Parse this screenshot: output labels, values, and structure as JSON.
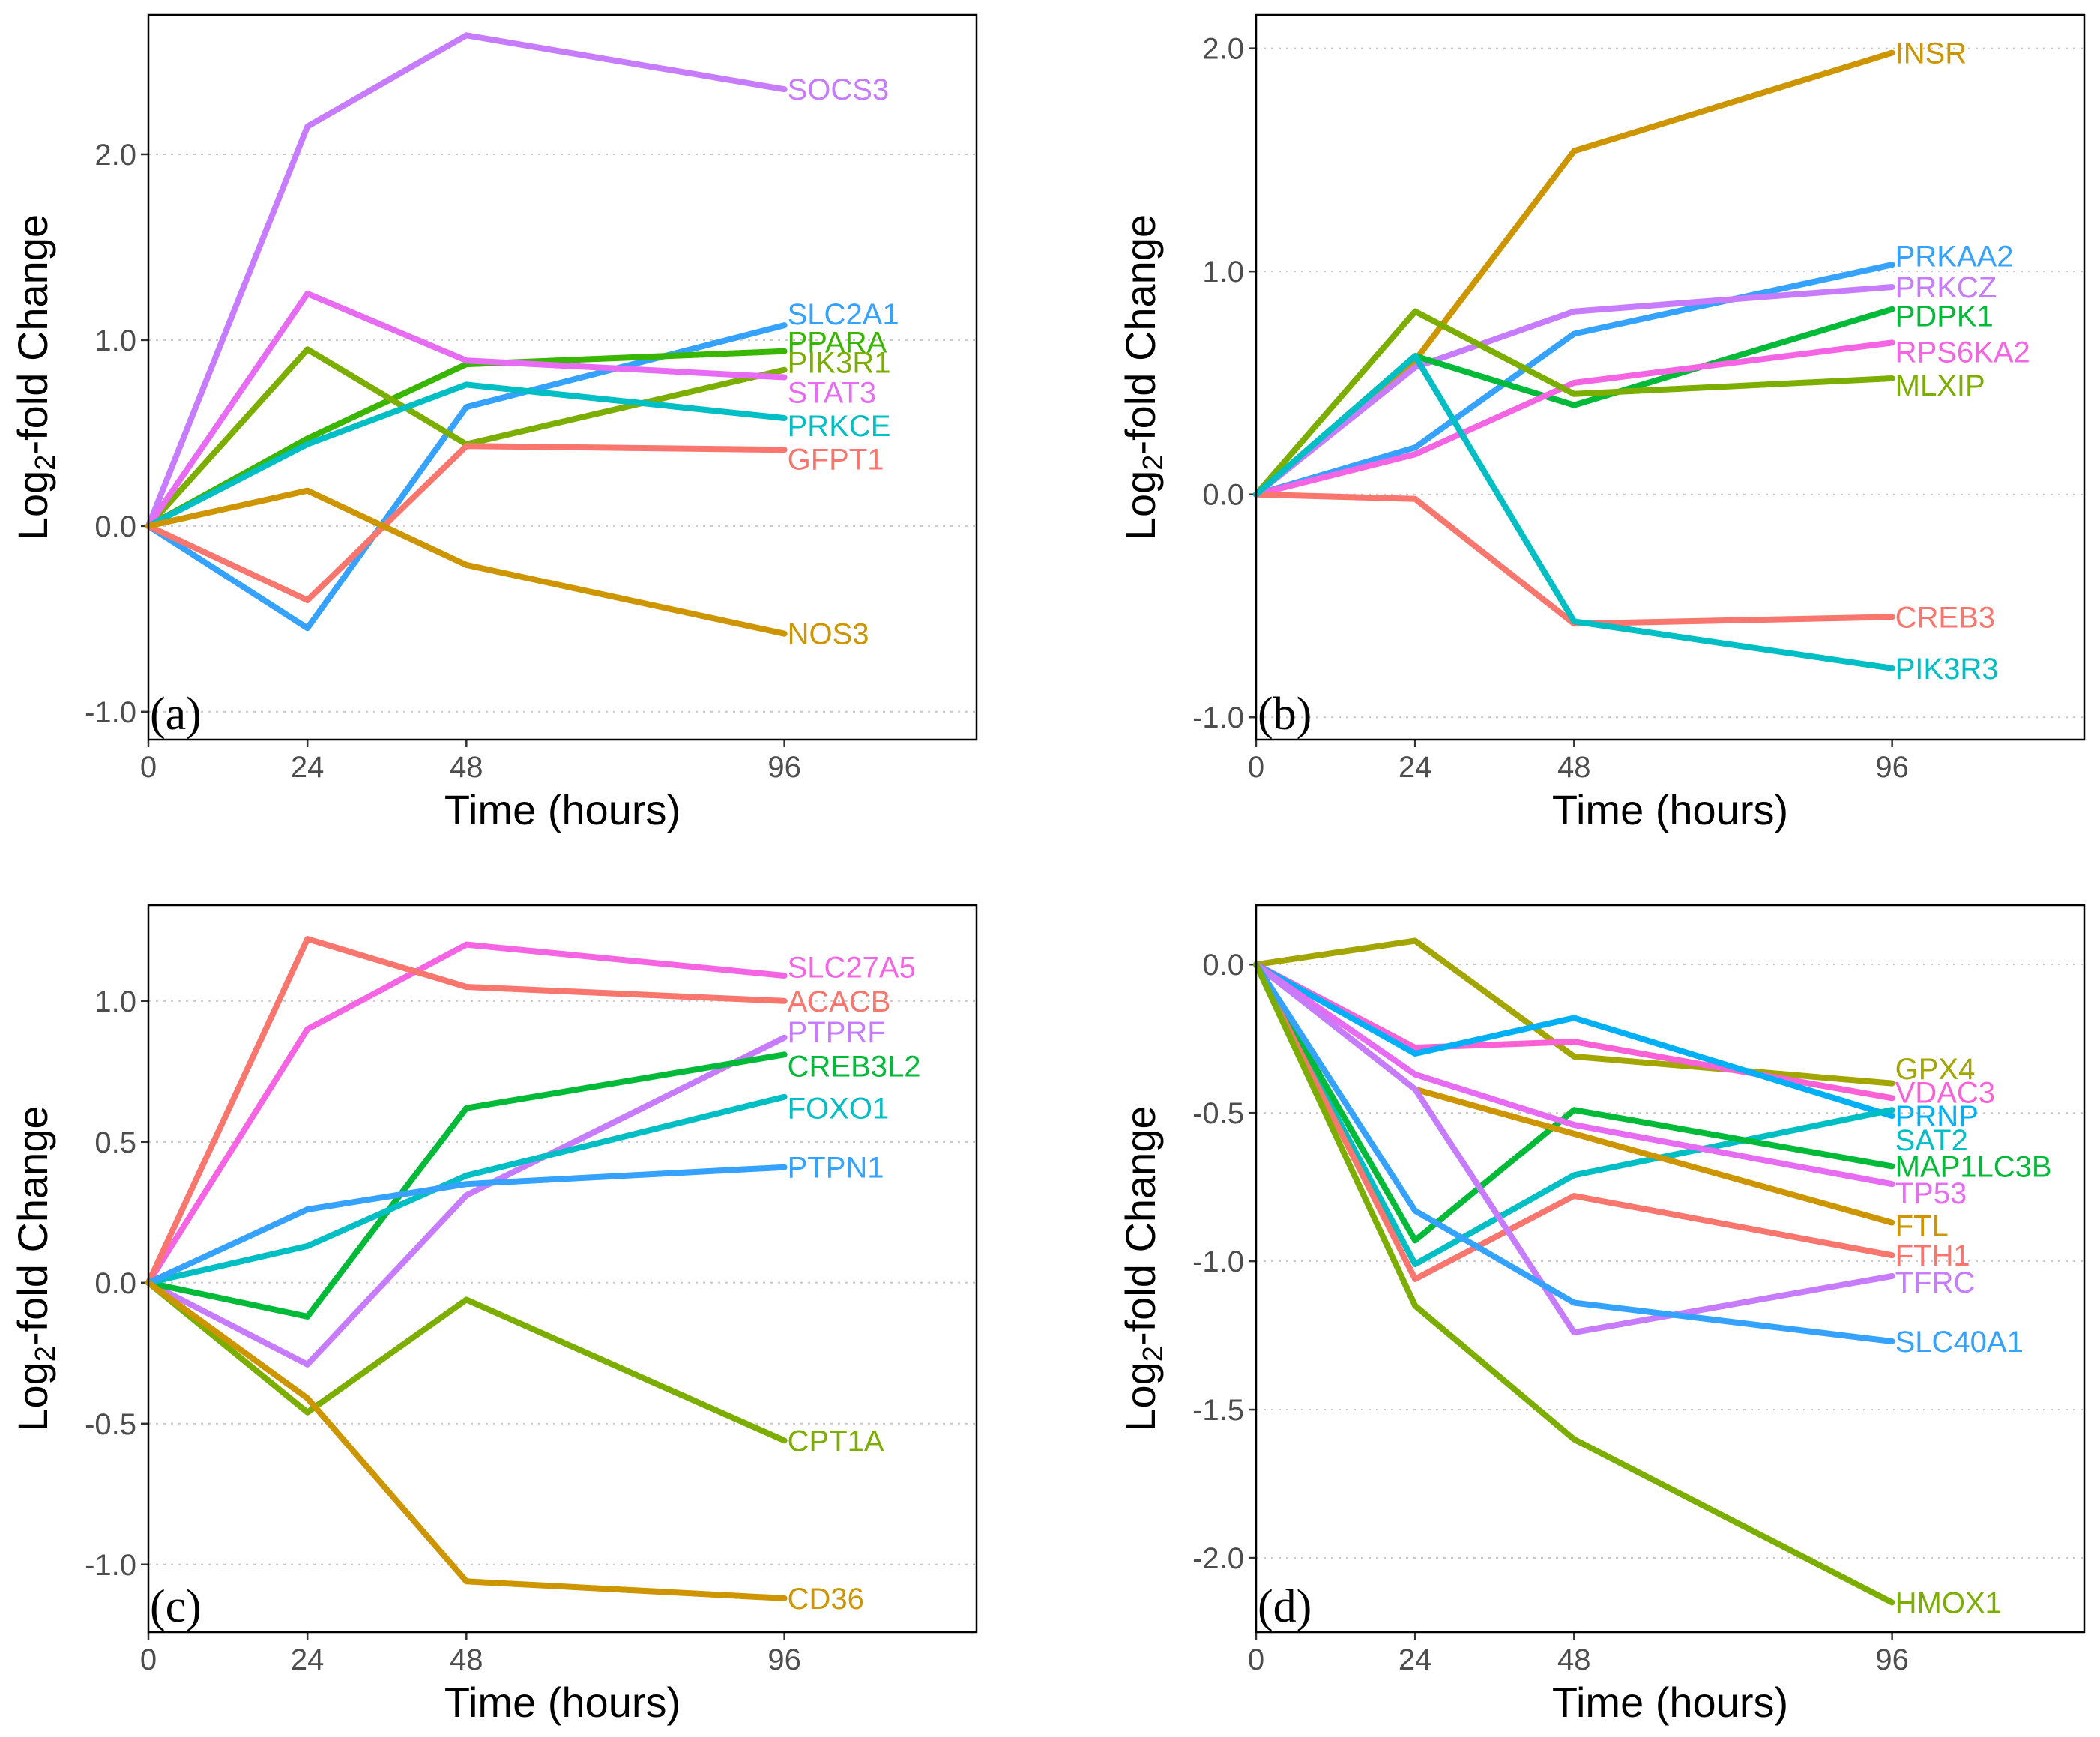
{
  "figure": {
    "axis_titles": {
      "x": "Time (hours)",
      "y_main": "Log",
      "y_sub": "2",
      "y_rest": "-fold Change"
    }
  },
  "chart_data": [
    {
      "type": "line",
      "panel_label": "(a)",
      "xlabel": "Time (hours)",
      "ylabel": "Log2-fold Change",
      "x": [
        0,
        24,
        48,
        96
      ],
      "x_ticks": [
        "0",
        "24",
        "48",
        "96"
      ],
      "xlim": [
        0,
        125
      ],
      "ylim": [
        -1.15,
        2.75
      ],
      "y_ticks": [
        {
          "v": -1.0,
          "label": "-1.0"
        },
        {
          "v": 0.0,
          "label": "0.0"
        },
        {
          "v": 1.0,
          "label": "1.0"
        },
        {
          "v": 2.0,
          "label": "2.0"
        }
      ],
      "grid": "horizontal dotted",
      "series": [
        {
          "name": "SOCS3",
          "color": "#c77cff",
          "values": [
            0,
            2.15,
            2.64,
            2.35
          ],
          "label_value": 2.35
        },
        {
          "name": "SLC2A1",
          "color": "#35a2ff",
          "values": [
            0,
            -0.55,
            0.64,
            1.08
          ],
          "label_value": 1.14
        },
        {
          "name": "PPARA",
          "color": "#39b600",
          "values": [
            0,
            0.47,
            0.87,
            0.94
          ],
          "label_value": 0.99
        },
        {
          "name": "PIK3R1",
          "color": "#7cae00",
          "values": [
            0,
            0.95,
            0.44,
            0.84
          ],
          "label_value": 0.88
        },
        {
          "name": "STAT3",
          "color": "#e76bf3",
          "values": [
            0,
            1.25,
            0.89,
            0.8
          ],
          "label_value": 0.72
        },
        {
          "name": "PRKCE",
          "color": "#00bfc4",
          "values": [
            0,
            0.44,
            0.76,
            0.58
          ],
          "label_value": 0.54
        },
        {
          "name": "GFPT1",
          "color": "#f8766d",
          "values": [
            0,
            -0.4,
            0.43,
            0.41
          ],
          "label_value": 0.36
        },
        {
          "name": "NOS3",
          "color": "#cd9600",
          "values": [
            0,
            0.19,
            -0.21,
            -0.58
          ],
          "label_value": -0.58
        }
      ]
    },
    {
      "type": "line",
      "panel_label": "(b)",
      "xlabel": "Time (hours)",
      "ylabel": "Log2-fold Change",
      "x": [
        0,
        24,
        48,
        96
      ],
      "x_ticks": [
        "0",
        "24",
        "48",
        "96"
      ],
      "xlim": [
        0,
        125
      ],
      "ylim": [
        -1.1,
        2.15
      ],
      "y_ticks": [
        {
          "v": -1.0,
          "label": "-1.0"
        },
        {
          "v": 0.0,
          "label": "0.0"
        },
        {
          "v": 1.0,
          "label": "1.0"
        },
        {
          "v": 2.0,
          "label": "2.0"
        }
      ],
      "grid": "horizontal dotted",
      "series": [
        {
          "name": "INSR",
          "color": "#cd9600",
          "values": [
            0,
            0.6,
            1.54,
            1.98
          ],
          "label_value": 1.98
        },
        {
          "name": "PRKAA2",
          "color": "#35a2ff",
          "values": [
            0,
            0.21,
            0.72,
            1.03
          ],
          "label_value": 1.07
        },
        {
          "name": "PRKCZ",
          "color": "#c77cff",
          "values": [
            0,
            0.57,
            0.82,
            0.93
          ],
          "label_value": 0.93
        },
        {
          "name": "PDPK1",
          "color": "#00ba38",
          "values": [
            0,
            0.62,
            0.4,
            0.83
          ],
          "label_value": 0.8
        },
        {
          "name": "RPS6KA2",
          "color": "#f564e3",
          "values": [
            0,
            0.18,
            0.5,
            0.68
          ],
          "label_value": 0.64
        },
        {
          "name": "MLXIP",
          "color": "#7cae00",
          "values": [
            0,
            0.82,
            0.45,
            0.52
          ],
          "label_value": 0.49
        },
        {
          "name": "CREB3",
          "color": "#f8766d",
          "values": [
            0,
            -0.02,
            -0.58,
            -0.55
          ],
          "label_value": -0.55
        },
        {
          "name": "PIK3R3",
          "color": "#00bfc4",
          "values": [
            0,
            0.62,
            -0.57,
            -0.78
          ],
          "label_value": -0.78
        }
      ]
    },
    {
      "type": "line",
      "panel_label": "(c)",
      "xlabel": "Time (hours)",
      "ylabel": "Log2-fold Change",
      "x": [
        0,
        24,
        48,
        96
      ],
      "x_ticks": [
        "0",
        "24",
        "48",
        "96"
      ],
      "xlim": [
        0,
        125
      ],
      "ylim": [
        -1.24,
        1.34
      ],
      "y_ticks": [
        {
          "v": -1.0,
          "label": "-1.0"
        },
        {
          "v": -0.5,
          "label": "-0.5"
        },
        {
          "v": 0.0,
          "label": "0.0"
        },
        {
          "v": 0.5,
          "label": "0.5"
        },
        {
          "v": 1.0,
          "label": "1.0"
        }
      ],
      "grid": "horizontal dotted",
      "series": [
        {
          "name": "SLC27A5",
          "color": "#f564e3",
          "values": [
            0,
            0.9,
            1.2,
            1.09
          ],
          "label_value": 1.12
        },
        {
          "name": "ACACB",
          "color": "#f8766d",
          "values": [
            0,
            1.22,
            1.05,
            1.0
          ],
          "label_value": 1.0
        },
        {
          "name": "PTPRF",
          "color": "#c77cff",
          "values": [
            0,
            -0.29,
            0.31,
            0.87
          ],
          "label_value": 0.89
        },
        {
          "name": "CREB3L2",
          "color": "#00ba38",
          "values": [
            0,
            -0.12,
            0.62,
            0.81
          ],
          "label_value": 0.77
        },
        {
          "name": "FOXO1",
          "color": "#00bfc4",
          "values": [
            0,
            0.13,
            0.38,
            0.66
          ],
          "label_value": 0.62
        },
        {
          "name": "PTPN1",
          "color": "#35a2ff",
          "values": [
            0,
            0.26,
            0.35,
            0.41
          ],
          "label_value": 0.41
        },
        {
          "name": "CPT1A",
          "color": "#7cae00",
          "values": [
            0,
            -0.46,
            -0.06,
            -0.56
          ],
          "label_value": -0.56
        },
        {
          "name": "CD36",
          "color": "#cd9600",
          "values": [
            0,
            -0.41,
            -1.06,
            -1.12
          ],
          "label_value": -1.12
        }
      ]
    },
    {
      "type": "line",
      "panel_label": "(d)",
      "xlabel": "Time (hours)",
      "ylabel": "Log2-fold Change",
      "x": [
        0,
        24,
        48,
        96
      ],
      "x_ticks": [
        "0",
        "24",
        "48",
        "96"
      ],
      "xlim": [
        0,
        125
      ],
      "ylim": [
        -2.25,
        0.2
      ],
      "y_ticks": [
        {
          "v": -2.0,
          "label": "-2.0"
        },
        {
          "v": -1.5,
          "label": "-1.5"
        },
        {
          "v": -1.0,
          "label": "-1.0"
        },
        {
          "v": -0.5,
          "label": "-0.5"
        },
        {
          "v": 0.0,
          "label": "0.0"
        }
      ],
      "grid": "horizontal dotted",
      "series": [
        {
          "name": "GPX4",
          "color": "#a3a500",
          "values": [
            0,
            0.08,
            -0.31,
            -0.4
          ],
          "label_value": -0.35
        },
        {
          "name": "VDAC3",
          "color": "#fb61d7",
          "values": [
            0,
            -0.28,
            -0.26,
            -0.45
          ],
          "label_value": -0.43
        },
        {
          "name": "PRNP",
          "color": "#00b0f6",
          "values": [
            0,
            -0.3,
            -0.18,
            -0.51
          ],
          "label_value": -0.51
        },
        {
          "name": "SAT2",
          "color": "#00bfc4",
          "values": [
            0,
            -1.01,
            -0.71,
            -0.49
          ],
          "label_value": -0.59
        },
        {
          "name": "MAP1LC3B",
          "color": "#00ba38",
          "values": [
            0,
            -0.93,
            -0.49,
            -0.68
          ],
          "label_value": -0.68
        },
        {
          "name": "TP53",
          "color": "#e76bf3",
          "values": [
            0,
            -0.37,
            -0.54,
            -0.74
          ],
          "label_value": -0.77
        },
        {
          "name": "FTL",
          "color": "#cd9600",
          "values": [
            0,
            -0.42,
            -0.57,
            -0.87
          ],
          "label_value": -0.88
        },
        {
          "name": "FTH1",
          "color": "#f8766d",
          "values": [
            0,
            -1.06,
            -0.78,
            -0.98
          ],
          "label_value": -0.98
        },
        {
          "name": "TFRC",
          "color": "#c77cff",
          "values": [
            0,
            -0.42,
            -1.24,
            -1.05
          ],
          "label_value": -1.07
        },
        {
          "name": "SLC40A1",
          "color": "#35a2ff",
          "values": [
            0,
            -0.83,
            -1.14,
            -1.27
          ],
          "label_value": -1.27
        },
        {
          "name": "HMOX1",
          "color": "#7cae00",
          "values": [
            0,
            -1.15,
            -1.6,
            -2.15
          ],
          "label_value": -2.15
        }
      ]
    }
  ]
}
